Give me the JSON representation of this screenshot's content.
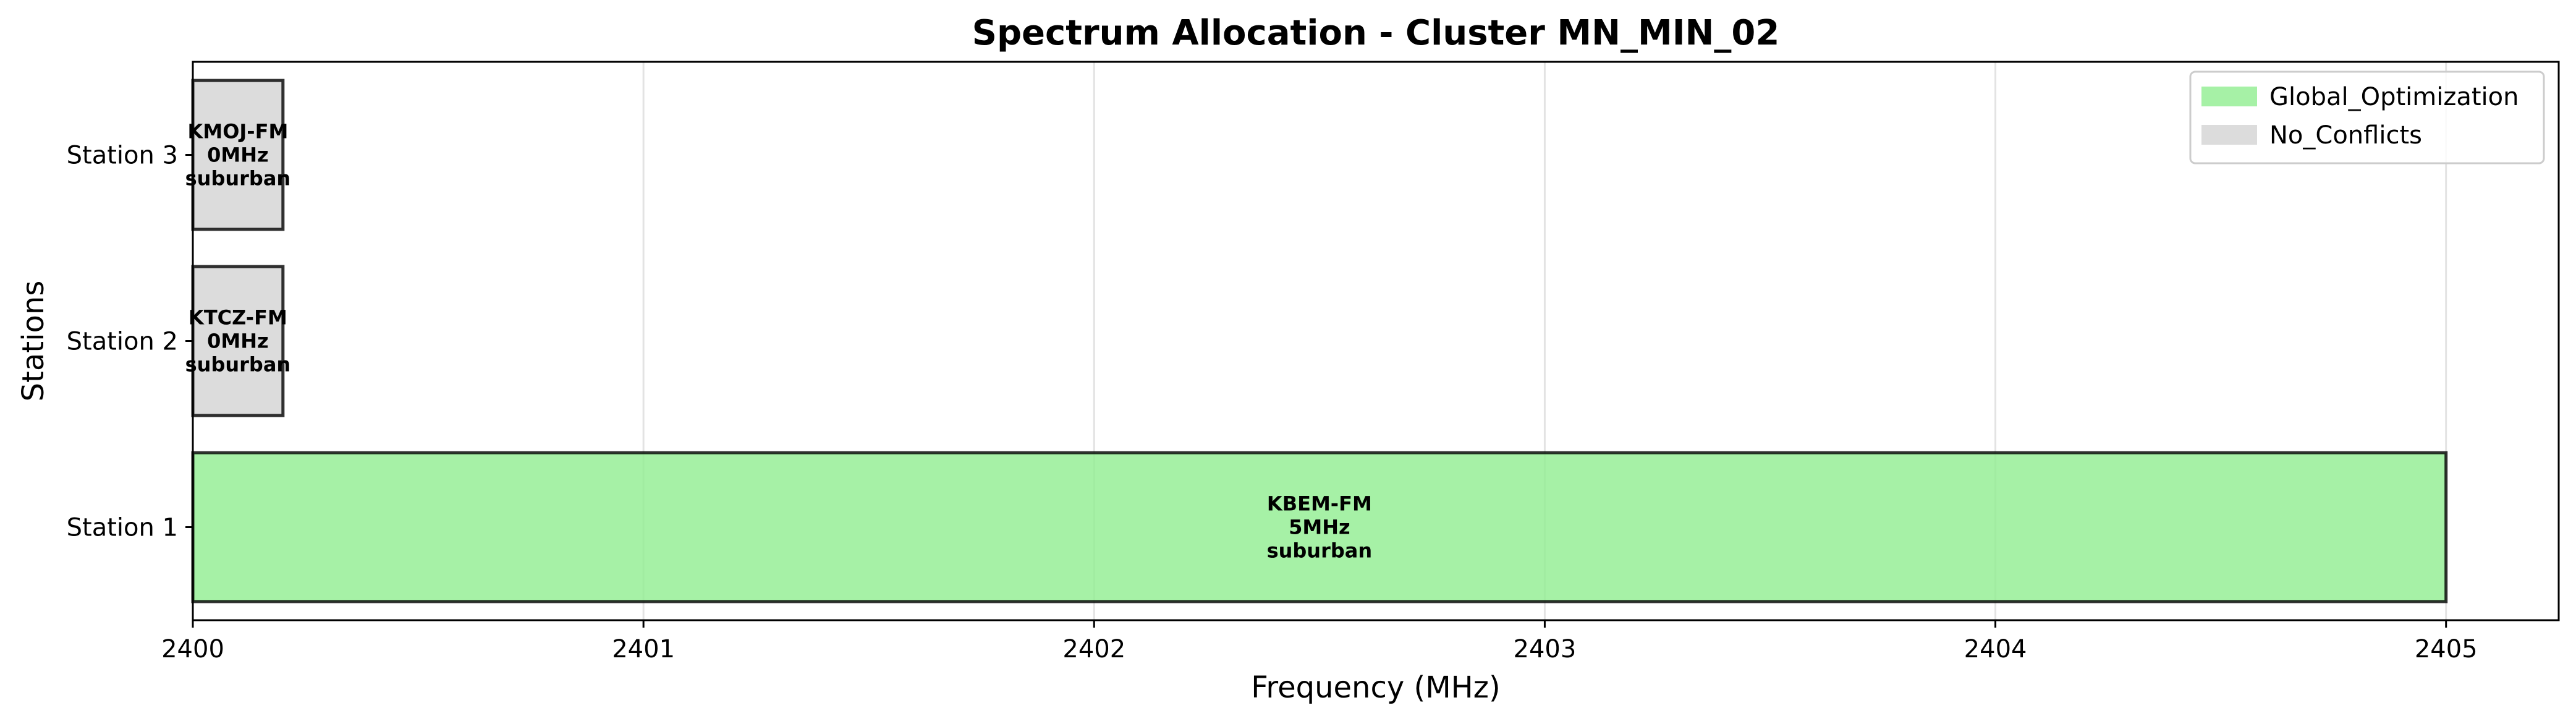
{
  "chart_data": {
    "type": "bar",
    "orientation": "horizontal",
    "title": "Spectrum Allocation - Cluster MN_MIN_02",
    "xlabel": "Frequency (MHz)",
    "ylabel": "Stations",
    "xlim": [
      2400,
      2405.25
    ],
    "xticks": [
      "2400",
      "2401",
      "2402",
      "2403",
      "2404",
      "2405"
    ],
    "grid": "vertical",
    "legend_position": "top-right",
    "categories": [
      "Station 1",
      "Station 2",
      "Station 3"
    ],
    "bars": [
      {
        "station": "Station 1",
        "start": 2400,
        "end": 2405,
        "label_lines": [
          "KBEM-FM",
          "5MHz",
          "suburban"
        ],
        "group": "Global_Optimization"
      },
      {
        "station": "Station 2",
        "start": 2400,
        "end": 2400.2,
        "label_lines": [
          "KTCZ-FM",
          "0MHz",
          "suburban"
        ],
        "group": "No_Conflicts"
      },
      {
        "station": "Station 3",
        "start": 2400,
        "end": 2400.2,
        "label_lines": [
          "KMOJ-FM",
          "0MHz",
          "suburban"
        ],
        "group": "No_Conflicts"
      }
    ],
    "legend": [
      {
        "name": "Global_Optimization",
        "color": "#90ee90"
      },
      {
        "name": "No_Conflicts",
        "color": "#d3d3d3"
      }
    ]
  }
}
